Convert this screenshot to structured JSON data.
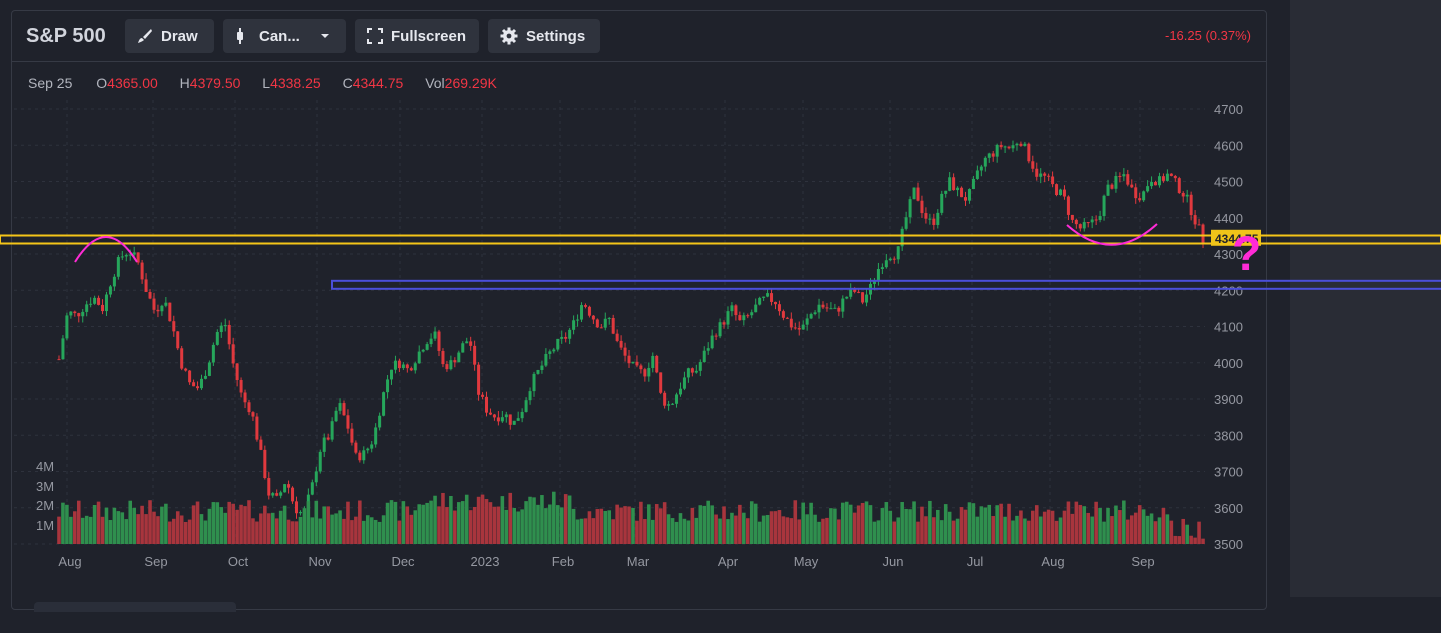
{
  "header": {
    "symbol": "S&P 500",
    "draw_label": "Draw",
    "chart_type_label": "Can...",
    "fullscreen_label": "Fullscreen",
    "settings_label": "Settings",
    "change": "-16.25 (0.37%)"
  },
  "ohlc": {
    "date": "Sep 25",
    "open_label": "O",
    "open": "4365.00",
    "high_label": "H",
    "high": "4379.50",
    "low_label": "L",
    "low": "4338.25",
    "close_label": "C",
    "close": "4344.75",
    "vol_label": "Vol",
    "vol": "269.29K"
  },
  "colors": {
    "up": "#26a65b",
    "down": "#e0393e",
    "up_volume": "#2f8f4e",
    "down_volume": "#a8353d",
    "grid": "#2e323d",
    "axis_text": "#9598a1",
    "support_line": "#f5c518",
    "zone_line": "#4b4fd8",
    "annotation": "#ff2bd6"
  },
  "chart_data": {
    "type": "candlestick",
    "title": "S&P 500",
    "price_axis": {
      "ticks": [
        3500,
        3600,
        3700,
        3800,
        3900,
        4000,
        4100,
        4200,
        4300,
        4400,
        4500,
        4600,
        4700
      ],
      "ylim": [
        3500,
        4700
      ]
    },
    "volume_axis": {
      "ticks": [
        "1M",
        "2M",
        "3M",
        "4M"
      ],
      "values": [
        1,
        2,
        3,
        4
      ]
    },
    "x_labels": [
      "Aug",
      "Sep",
      "Oct",
      "Nov",
      "Dec",
      "2023",
      "Feb",
      "Mar",
      "Apr",
      "May",
      "Jun",
      "Jul",
      "Aug",
      "Sep"
    ],
    "last_price_label": "4344.75",
    "horizontal_levels": [
      {
        "name": "support",
        "value": 4340
      },
      {
        "name": "zone",
        "value": 4215
      }
    ],
    "annotation_text": "?",
    "series_close": [
      4010,
      4140,
      4130,
      4160,
      4180,
      4150,
      4230,
      4290,
      4310,
      4280,
      4200,
      4140,
      4180,
      4100,
      4000,
      3940,
      3930,
      3990,
      4080,
      4110,
      3990,
      3900,
      3870,
      3760,
      3640,
      3620,
      3680,
      3600,
      3580,
      3660,
      3770,
      3800,
      3890,
      3830,
      3740,
      3750,
      3790,
      3900,
      3990,
      4000,
      3980,
      4020,
      4060,
      4080,
      3990,
      4000,
      4040,
      4070,
      3920,
      3870,
      3850,
      3860,
      3830,
      3870,
      3940,
      3980,
      4020,
      4050,
      4070,
      4110,
      4170,
      4130,
      4100,
      4120,
      4050,
      4010,
      3980,
      3970,
      4020,
      3900,
      3880,
      3930,
      3970,
      3980,
      4030,
      4080,
      4110,
      4150,
      4110,
      4130,
      4160,
      4180,
      4170,
      4130,
      4100,
      4090,
      4130,
      4160,
      4150,
      4140,
      4180,
      4200,
      4170,
      4210,
      4270,
      4300,
      4300,
      4400,
      4480,
      4410,
      4380,
      4450,
      4500,
      4470,
      4450,
      4510,
      4560,
      4580,
      4600,
      4590,
      4620,
      4570,
      4520,
      4510,
      4480,
      4460,
      4390,
      4370,
      4380,
      4400,
      4480,
      4500,
      4520,
      4470,
      4460,
      4510,
      4500,
      4520,
      4490,
      4460,
      4400,
      4340
    ]
  }
}
